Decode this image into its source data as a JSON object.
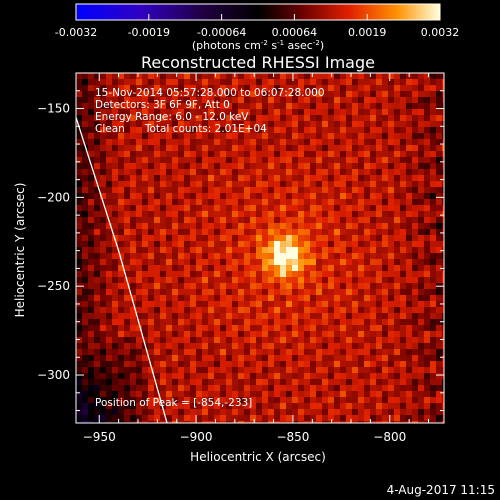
{
  "colorbar": {
    "ticks": [
      "-0.0032",
      "-0.0019",
      "-0.00064",
      "0.00064",
      "0.0019",
      "0.0032"
    ],
    "unit_prefix": "(photons cm",
    "unit_cm_exp": "-2",
    "unit_s": " s",
    "unit_s_exp": "-1",
    "unit_asec": " asec",
    "unit_asec_exp": "-2",
    "unit_suffix": ")"
  },
  "chart_data": {
    "type": "heatmap",
    "title": "Reconstructed RHESSI Image",
    "xlabel": "Heliocentric X (arcsec)",
    "ylabel": "Heliocentric Y (arcsec)",
    "xlim": [
      -962,
      -772
    ],
    "ylim": [
      -327,
      -130
    ],
    "x_ticks": [
      -950,
      -900,
      -850,
      -800
    ],
    "y_ticks": [
      -150,
      -200,
      -250,
      -300
    ],
    "color_range": [
      -0.0032,
      0.0032
    ],
    "peak": {
      "x": -854,
      "y": -233
    },
    "limb": [
      [
        -962,
        -155
      ],
      [
        -940,
        -230
      ],
      [
        -915,
        -327
      ]
    ],
    "annotations": [
      "15-Nov-2014 05:57:28.000 to 06:07:28.000",
      "Detectors: 3F 6F 9F, Att 0",
      "Energy Range: 6.0 - 12.0 keV",
      "Clean      Total counts: 2.01E+04"
    ],
    "peak_label": "Position of Peak = [-854,-233]"
  },
  "footer": {
    "date": "4-Aug-2017 11:15"
  }
}
